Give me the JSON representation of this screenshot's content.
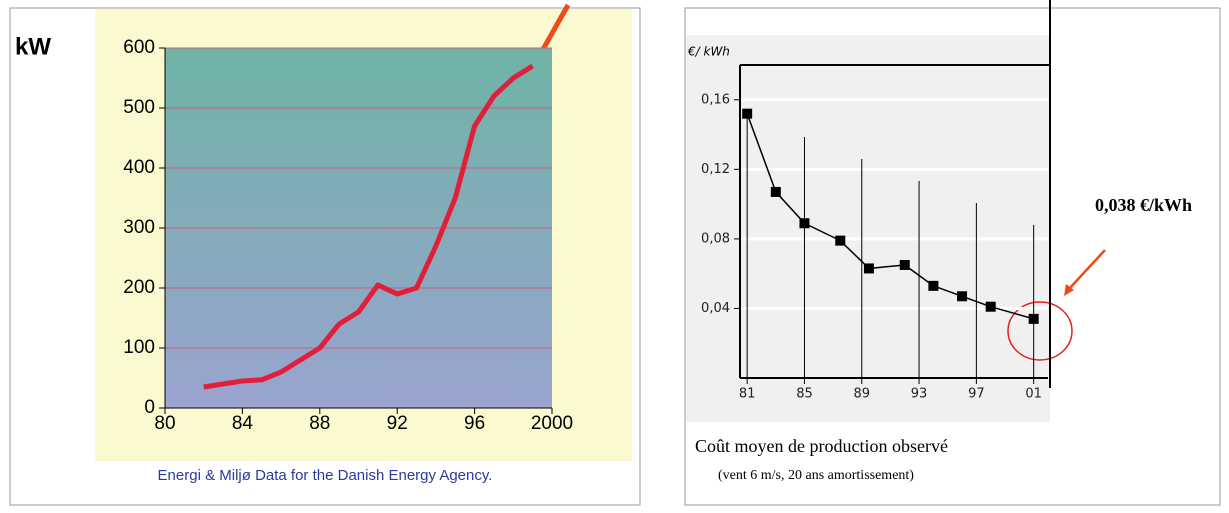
{
  "chart_data": [
    {
      "type": "line",
      "y_label": "kW",
      "subtitle": "Energi & Miljø Data for the Danish Energy Agency.",
      "x": [
        82,
        83,
        84,
        85,
        86,
        87,
        88,
        89,
        90,
        91,
        92,
        93,
        94,
        95,
        96,
        97,
        98,
        99
      ],
      "values": [
        35,
        40,
        45,
        47,
        60,
        80,
        100,
        140,
        160,
        205,
        190,
        200,
        270,
        350,
        470,
        520,
        550,
        570
      ],
      "color": "#e0203a",
      "markers": false,
      "xlim": [
        80,
        100
      ],
      "xticks": [
        80,
        84,
        88,
        92,
        96,
        {
          "value": 100,
          "label": "2000"
        }
      ],
      "ylim": [
        0,
        600
      ],
      "yticks": [
        0,
        100,
        200,
        300,
        400,
        500,
        600
      ],
      "grid": true
    },
    {
      "type": "line",
      "y_label": "€/ kWh",
      "title": "Coût moyen de production observé",
      "subtitle": "(vent 6 m/s, 20 ans amortissement)",
      "annotation": "0,038 €/kWh",
      "x": [
        81,
        83,
        85,
        87.5,
        89.5,
        92,
        94,
        96,
        98,
        101
      ],
      "values": [
        0.152,
        0.107,
        0.089,
        0.079,
        0.063,
        0.065,
        0.053,
        0.047,
        0.041,
        0.034
      ],
      "color": "#000000",
      "markers": true,
      "xlim": [
        80.5,
        102
      ],
      "xticks": [
        81,
        85,
        89,
        93,
        97,
        {
          "value": 101,
          "label": "01"
        }
      ],
      "ylim": [
        0,
        0.18
      ],
      "yticks": [
        {
          "value": 0.04,
          "label": "0,04"
        },
        {
          "value": 0.08,
          "label": "0,08"
        },
        {
          "value": 0.12,
          "label": "0,12"
        },
        {
          "value": 0.16,
          "label": "0,16"
        }
      ],
      "grid": true,
      "xgrid": true
    }
  ]
}
